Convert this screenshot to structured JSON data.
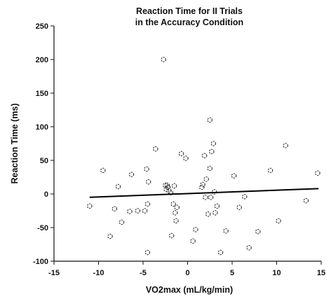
{
  "chart_data": {
    "type": "scatter",
    "title": [
      "Reaction Time for II Trials",
      "in the Accuracy Condition"
    ],
    "xlabel": "VO2max (mL/kg/min)",
    "ylabel": "Reaction Time (ms)",
    "xlim": [
      -15,
      15
    ],
    "ylim": [
      -100,
      250
    ],
    "xticks": [
      -15,
      -10,
      -5,
      0,
      5,
      10,
      15
    ],
    "yticks": [
      -100,
      -50,
      0,
      50,
      100,
      150,
      200,
      250
    ],
    "grid": false,
    "legend": "none",
    "regression_line": {
      "x": [
        -11,
        14.7
      ],
      "y": [
        -5,
        8
      ]
    },
    "points": [
      [
        -11,
        -18
      ],
      [
        -9.5,
        35
      ],
      [
        -8.7,
        -63
      ],
      [
        -8.2,
        -22
      ],
      [
        -7.8,
        11
      ],
      [
        -7.4,
        -42
      ],
      [
        -6.5,
        -26
      ],
      [
        -6.3,
        29
      ],
      [
        -5.6,
        -25
      ],
      [
        -4.8,
        -25
      ],
      [
        -4.6,
        37
      ],
      [
        -4.5,
        -15
      ],
      [
        -4.4,
        18
      ],
      [
        -4.5,
        -87
      ],
      [
        -3.6,
        67
      ],
      [
        -2.7,
        200
      ],
      [
        -2.5,
        13
      ],
      [
        -2.4,
        7
      ],
      [
        -2.3,
        13
      ],
      [
        -2.2,
        10
      ],
      [
        -2.1,
        5
      ],
      [
        -1.9,
        2
      ],
      [
        -1.8,
        -62
      ],
      [
        -1.6,
        -15
      ],
      [
        -1.5,
        12
      ],
      [
        -1.4,
        -28
      ],
      [
        -1.3,
        -40
      ],
      [
        -1.2,
        -20
      ],
      [
        -0.7,
        60
      ],
      [
        -0.2,
        53
      ],
      [
        0.6,
        -70
      ],
      [
        0.9,
        -53
      ],
      [
        1.6,
        10
      ],
      [
        1.7,
        14
      ],
      [
        1.9,
        57
      ],
      [
        2.0,
        -5
      ],
      [
        2.1,
        22
      ],
      [
        2.3,
        -30
      ],
      [
        2.5,
        110
      ],
      [
        2.5,
        38
      ],
      [
        2.6,
        -5
      ],
      [
        2.7,
        63
      ],
      [
        2.9,
        75
      ],
      [
        3.0,
        3
      ],
      [
        3.1,
        -28
      ],
      [
        3.3,
        -18
      ],
      [
        3.7,
        -87
      ],
      [
        4.3,
        -55
      ],
      [
        5.2,
        27
      ],
      [
        5.8,
        -20
      ],
      [
        6.4,
        -4
      ],
      [
        6.9,
        -80
      ],
      [
        7.9,
        -56
      ],
      [
        9.3,
        35
      ],
      [
        10.2,
        -40
      ],
      [
        11.0,
        72
      ],
      [
        13.3,
        -10
      ],
      [
        14.6,
        31
      ]
    ]
  }
}
